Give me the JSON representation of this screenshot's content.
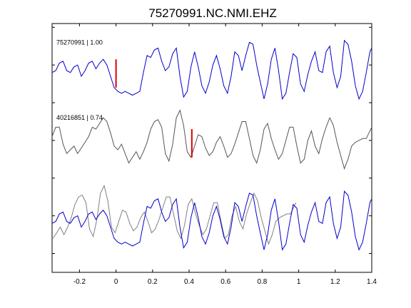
{
  "chart_data": {
    "type": "line",
    "title": "75270991.NC.NMI.EHZ",
    "xlabel": "",
    "ylabel": "",
    "xlim": [
      -0.35,
      1.4
    ],
    "xticks": [
      -0.2,
      0,
      0.2,
      0.4,
      0.6,
      0.8,
      1,
      1.2,
      1.4
    ],
    "xtick_labels": [
      "-0.2",
      "0",
      "0.2",
      "0.4",
      "0.6",
      "0.8",
      "1",
      "1.2",
      "1.4"
    ],
    "ylim": [
      0,
      6.6
    ],
    "yticks": [
      0.5,
      1.5,
      2.5,
      3.5,
      4.5,
      5.5,
      6.5
    ],
    "ytick_labels": [
      "",
      "",
      "",
      "",
      "",
      "",
      ""
    ],
    "grid": false,
    "colors": {
      "blue": "#0000cc",
      "gray": "#555555",
      "gray_overlay": "#808080",
      "pick": "#dd0000"
    },
    "traces": [
      {
        "label": "75270991 | 1.00",
        "color": "#0000cc",
        "baseline": 5.5,
        "pick_time": 0.0,
        "x": [
          -0.35,
          -0.33,
          -0.31,
          -0.29,
          -0.27,
          -0.25,
          -0.23,
          -0.21,
          -0.19,
          -0.17,
          -0.15,
          -0.13,
          -0.11,
          -0.09,
          -0.07,
          -0.05,
          -0.03,
          -0.01,
          0.01,
          0.03,
          0.05,
          0.07,
          0.09,
          0.11,
          0.13,
          0.15,
          0.17,
          0.19,
          0.21,
          0.23,
          0.25,
          0.27,
          0.29,
          0.31,
          0.33,
          0.35,
          0.37,
          0.39,
          0.41,
          0.43,
          0.45,
          0.47,
          0.49,
          0.51,
          0.53,
          0.55,
          0.57,
          0.59,
          0.61,
          0.63,
          0.65,
          0.67,
          0.69,
          0.71,
          0.73,
          0.75,
          0.77,
          0.79,
          0.81,
          0.83,
          0.85,
          0.87,
          0.89,
          0.91,
          0.93,
          0.95,
          0.97,
          0.99,
          1.01,
          1.03,
          1.05,
          1.07,
          1.09,
          1.11,
          1.13,
          1.15,
          1.17,
          1.19,
          1.21,
          1.23,
          1.25,
          1.27,
          1.29,
          1.31,
          1.33,
          1.35,
          1.37,
          1.39,
          1.4
        ],
        "y": [
          5.3,
          5.35,
          5.55,
          5.6,
          5.35,
          5.3,
          5.45,
          5.5,
          5.2,
          5.35,
          5.55,
          5.6,
          5.4,
          5.55,
          5.65,
          5.5,
          5.2,
          4.9,
          4.8,
          4.75,
          4.8,
          4.75,
          4.7,
          4.75,
          4.8,
          5.3,
          5.75,
          5.7,
          5.9,
          5.95,
          5.6,
          5.35,
          5.45,
          5.8,
          5.95,
          5.2,
          4.65,
          4.8,
          5.45,
          5.85,
          5.45,
          4.95,
          4.75,
          5.05,
          5.5,
          5.75,
          5.4,
          4.95,
          4.75,
          5.2,
          5.85,
          5.75,
          5.35,
          5.75,
          6.1,
          6.05,
          5.5,
          5.05,
          4.6,
          5.0,
          5.65,
          5.95,
          5.35,
          4.6,
          4.75,
          5.3,
          5.8,
          5.7,
          5.0,
          4.8,
          5.25,
          5.6,
          5.85,
          5.35,
          5.3,
          5.85,
          6.0,
          5.3,
          4.9,
          5.2,
          6.15,
          6.05,
          5.6,
          4.95,
          4.6,
          4.8,
          5.3,
          5.85,
          5.95
        ]
      },
      {
        "label": "40216851 | 0.74",
        "color": "#555555",
        "baseline": 3.5,
        "pick_time": 0.415,
        "x": [
          -0.35,
          -0.33,
          -0.31,
          -0.29,
          -0.27,
          -0.25,
          -0.23,
          -0.21,
          -0.19,
          -0.17,
          -0.15,
          -0.13,
          -0.11,
          -0.09,
          -0.07,
          -0.05,
          -0.03,
          -0.01,
          0.01,
          0.03,
          0.05,
          0.07,
          0.09,
          0.11,
          0.13,
          0.15,
          0.17,
          0.19,
          0.21,
          0.23,
          0.25,
          0.27,
          0.29,
          0.31,
          0.33,
          0.35,
          0.37,
          0.39,
          0.41,
          0.43,
          0.45,
          0.47,
          0.49,
          0.51,
          0.53,
          0.55,
          0.57,
          0.59,
          0.61,
          0.63,
          0.65,
          0.67,
          0.69,
          0.71,
          0.73,
          0.75,
          0.77,
          0.79,
          0.81,
          0.83,
          0.85,
          0.87,
          0.89,
          0.91,
          0.93,
          0.95,
          0.97,
          0.99,
          1.01,
          1.03,
          1.05,
          1.07,
          1.09,
          1.11,
          1.13,
          1.15,
          1.17,
          1.19,
          1.21,
          1.23,
          1.25,
          1.27,
          1.29,
          1.31,
          1.33,
          1.35,
          1.37,
          1.39,
          1.4
        ],
        "y": [
          3.6,
          3.85,
          3.85,
          3.4,
          3.15,
          3.25,
          3.35,
          3.15,
          3.3,
          3.45,
          3.6,
          3.85,
          3.8,
          3.95,
          4.1,
          4.0,
          3.7,
          3.35,
          3.25,
          3.4,
          3.15,
          2.9,
          3.05,
          3.2,
          3.0,
          3.2,
          3.45,
          3.8,
          4.0,
          4.05,
          3.85,
          3.15,
          2.95,
          3.4,
          4.1,
          4.3,
          3.9,
          3.2,
          3.05,
          3.35,
          3.65,
          3.6,
          3.3,
          3.1,
          3.2,
          3.45,
          3.6,
          3.35,
          3.05,
          3.15,
          3.4,
          3.7,
          4.0,
          4.0,
          3.55,
          3.1,
          2.9,
          3.25,
          3.8,
          3.95,
          3.55,
          3.25,
          3.0,
          3.15,
          3.5,
          3.85,
          3.85,
          3.35,
          2.9,
          3.0,
          3.5,
          3.75,
          3.35,
          3.15,
          3.55,
          3.85,
          4.1,
          3.9,
          3.45,
          3.1,
          2.75,
          3.0,
          3.35,
          3.45,
          3.5,
          3.55,
          3.55,
          3.75,
          3.85
        ]
      }
    ],
    "overlay": {
      "baseline": 1.5,
      "series": [
        {
          "source": "40216851 | 0.74",
          "color": "#808080",
          "time_shift": -0.415,
          "scale": 1.0
        },
        {
          "source": "75270991 | 1.00",
          "color": "#0000cc",
          "time_shift": 0.0,
          "scale": 1.0
        }
      ]
    }
  }
}
